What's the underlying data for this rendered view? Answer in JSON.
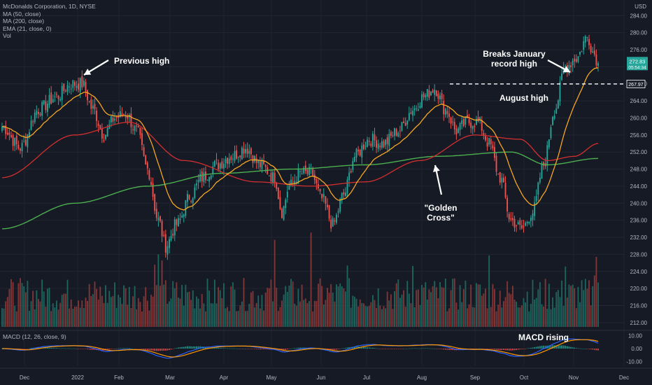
{
  "legend": {
    "symbol": "McDonalds Corporation, 1D, NYSE",
    "ma50": "MA (50, close)",
    "ma200": "MA (200, close)",
    "ema21": "EMA (21, close, 0)",
    "vol": "Vol",
    "macd": "MACD (12, 26, close, 9)"
  },
  "currency": "USD",
  "annotations": {
    "previous_high": "Previous high",
    "breaks_jan_1": "Breaks January",
    "breaks_jan_2": "record high",
    "august_high": "August high",
    "golden_1": "\"Golden",
    "golden_2": "Cross\"",
    "macd_rising": "MACD rising"
  },
  "price_badges": {
    "current_price": "272.83",
    "countdown": "05:54:34",
    "august_high_level": "267.97"
  },
  "colors": {
    "background": "#161a25",
    "up": "#26a69a",
    "down": "#ef5350",
    "ma50": "#d32f2f",
    "ma200": "#4caf50",
    "ema21": "#f5a623",
    "macd_line": "#2962ff",
    "signal_line": "#ff9800"
  },
  "chart_data": {
    "type": "candlestick",
    "title": "McDonalds Corporation, 1D, NYSE",
    "x_ticks": [
      "Dec",
      "2022",
      "Feb",
      "Mar",
      "Apr",
      "May",
      "Jun",
      "Jul",
      "Aug",
      "Sep",
      "Oct",
      "Nov",
      "Dec"
    ],
    "y_ticks": [
      "284.00",
      "280.00",
      "276.00",
      "272.00",
      "268.00",
      "264.00",
      "260.00",
      "256.00",
      "252.00",
      "248.00",
      "244.00",
      "240.00",
      "236.00",
      "232.00",
      "228.00",
      "224.00",
      "220.00",
      "216.00",
      "212.00"
    ],
    "macd_ticks": [
      "10.00",
      "0.00",
      "-10.00"
    ],
    "ylim": [
      210.5,
      287
    ],
    "macd_ylim": [
      -13,
      13
    ],
    "close_anchors": [
      {
        "d": 0,
        "v": 258
      },
      {
        "d": 10,
        "v": 253
      },
      {
        "d": 20,
        "v": 262
      },
      {
        "d": 30,
        "v": 265
      },
      {
        "d": 38,
        "v": 268
      },
      {
        "d": 44,
        "v": 268
      },
      {
        "d": 50,
        "v": 262
      },
      {
        "d": 56,
        "v": 256
      },
      {
        "d": 62,
        "v": 260
      },
      {
        "d": 68,
        "v": 261
      },
      {
        "d": 74,
        "v": 257
      },
      {
        "d": 80,
        "v": 248
      },
      {
        "d": 86,
        "v": 236
      },
      {
        "d": 90,
        "v": 230
      },
      {
        "d": 96,
        "v": 235
      },
      {
        "d": 104,
        "v": 242
      },
      {
        "d": 110,
        "v": 246
      },
      {
        "d": 118,
        "v": 249
      },
      {
        "d": 126,
        "v": 251
      },
      {
        "d": 134,
        "v": 253
      },
      {
        "d": 142,
        "v": 249
      },
      {
        "d": 150,
        "v": 246
      },
      {
        "d": 154,
        "v": 238
      },
      {
        "d": 158,
        "v": 244
      },
      {
        "d": 164,
        "v": 247
      },
      {
        "d": 170,
        "v": 247
      },
      {
        "d": 176,
        "v": 241
      },
      {
        "d": 182,
        "v": 235
      },
      {
        "d": 188,
        "v": 242
      },
      {
        "d": 194,
        "v": 251
      },
      {
        "d": 202,
        "v": 255
      },
      {
        "d": 210,
        "v": 254
      },
      {
        "d": 218,
        "v": 257
      },
      {
        "d": 226,
        "v": 262
      },
      {
        "d": 232,
        "v": 265
      },
      {
        "d": 238,
        "v": 267
      },
      {
        "d": 244,
        "v": 262
      },
      {
        "d": 250,
        "v": 257
      },
      {
        "d": 256,
        "v": 259
      },
      {
        "d": 262,
        "v": 259
      },
      {
        "d": 268,
        "v": 254
      },
      {
        "d": 274,
        "v": 246
      },
      {
        "d": 280,
        "v": 236
      },
      {
        "d": 286,
        "v": 234
      },
      {
        "d": 292,
        "v": 238
      },
      {
        "d": 298,
        "v": 249
      },
      {
        "d": 304,
        "v": 262
      },
      {
        "d": 310,
        "v": 272
      },
      {
        "d": 316,
        "v": 274
      },
      {
        "d": 322,
        "v": 279
      },
      {
        "d": 326,
        "v": 275
      },
      {
        "d": 328,
        "v": 272.83
      }
    ],
    "ma50_anchors": [
      {
        "d": 0,
        "v": 246
      },
      {
        "d": 40,
        "v": 256
      },
      {
        "d": 70,
        "v": 259
      },
      {
        "d": 100,
        "v": 250
      },
      {
        "d": 140,
        "v": 245
      },
      {
        "d": 170,
        "v": 244
      },
      {
        "d": 200,
        "v": 245
      },
      {
        "d": 230,
        "v": 250
      },
      {
        "d": 260,
        "v": 256
      },
      {
        "d": 285,
        "v": 255
      },
      {
        "d": 300,
        "v": 250
      },
      {
        "d": 315,
        "v": 251
      },
      {
        "d": 328,
        "v": 254
      }
    ],
    "ma200_anchors": [
      {
        "d": 0,
        "v": 234
      },
      {
        "d": 40,
        "v": 240
      },
      {
        "d": 80,
        "v": 244
      },
      {
        "d": 120,
        "v": 247
      },
      {
        "d": 160,
        "v": 248
      },
      {
        "d": 200,
        "v": 249
      },
      {
        "d": 240,
        "v": 251
      },
      {
        "d": 280,
        "v": 252
      },
      {
        "d": 300,
        "v": 249
      },
      {
        "d": 328,
        "v": 250.5
      }
    ]
  }
}
